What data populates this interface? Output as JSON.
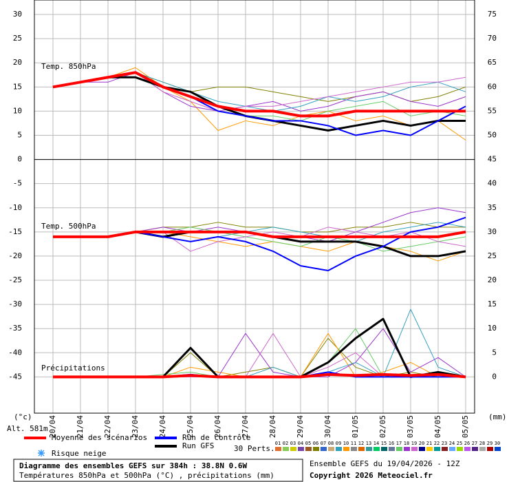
{
  "chart_data": {
    "type": "line",
    "categories": [
      "20/04",
      "21/04",
      "22/04",
      "23/04",
      "24/04",
      "25/04",
      "26/04",
      "27/04",
      "28/04",
      "29/04",
      "30/04",
      "01/05",
      "02/05",
      "03/05",
      "04/05",
      "05/05"
    ],
    "ylim": [
      -52.5,
      33
    ],
    "yticks": [
      30,
      25,
      20,
      15,
      10,
      5,
      0,
      -5,
      -10,
      -15,
      -20,
      -25,
      -30,
      -35,
      -40,
      -45
    ],
    "y2lim": [
      -7.5,
      78
    ],
    "y2ticks": [
      75,
      70,
      65,
      60,
      55,
      50,
      45,
      40,
      35,
      30,
      25,
      20,
      15,
      10,
      5,
      0
    ],
    "ylabel": "(°c)",
    "y2label": "(mm)",
    "grid": true,
    "annotations": [
      "Temp. 850hPa",
      "Temp. 500hPa",
      "Précipitations"
    ],
    "series": [
      {
        "color": "#808000",
        "values": [
          15,
          16,
          17,
          18,
          16,
          14,
          15,
          15,
          14,
          13,
          12,
          13,
          14,
          12,
          13,
          15
        ]
      },
      {
        "color": "#ff9900",
        "values": [
          15,
          16,
          17,
          19,
          15,
          12,
          6,
          8,
          7,
          9,
          10,
          8,
          9,
          7,
          8,
          4
        ]
      },
      {
        "color": "#9933cc",
        "values": [
          15,
          16,
          16,
          18,
          14,
          11,
          10,
          11,
          12,
          10,
          11,
          13,
          14,
          12,
          11,
          13
        ]
      },
      {
        "color": "#33a0c0",
        "values": [
          15,
          16,
          17,
          18,
          16,
          14,
          12,
          11,
          10,
          11,
          13,
          12,
          13,
          15,
          16,
          14
        ]
      },
      {
        "color": "#66cc66",
        "values": [
          15,
          16,
          17,
          18,
          15,
          13,
          11,
          9,
          9,
          8,
          10,
          11,
          12,
          9,
          10,
          9
        ]
      },
      {
        "color": "#cc66cc",
        "values": [
          15,
          16,
          17,
          18,
          14,
          12,
          10,
          11,
          11,
          12,
          13,
          14,
          15,
          16,
          16,
          17
        ]
      },
      {
        "color": "#808000",
        "values": [
          -16,
          -16,
          -16,
          -15,
          -14,
          -14,
          -13,
          -14,
          -14,
          -15,
          -15,
          -14,
          -14,
          -13,
          -14,
          -14
        ]
      },
      {
        "color": "#ff9900",
        "values": [
          -16,
          -16,
          -16,
          -15,
          -15,
          -16,
          -17,
          -18,
          -17,
          -18,
          -19,
          -17,
          -18,
          -19,
          -21,
          -19
        ]
      },
      {
        "color": "#9933cc",
        "values": [
          -16,
          -16,
          -16,
          -15,
          -14,
          -15,
          -14,
          -15,
          -16,
          -16,
          -17,
          -15,
          -13,
          -11,
          -10,
          -11
        ]
      },
      {
        "color": "#33a0c0",
        "values": [
          -16,
          -16,
          -16,
          -15,
          -16,
          -17,
          -16,
          -15,
          -14,
          -15,
          -16,
          -17,
          -15,
          -14,
          -13,
          -14
        ]
      },
      {
        "color": "#66cc66",
        "values": [
          -16,
          -16,
          -16,
          -15,
          -15,
          -14,
          -15,
          -16,
          -17,
          -18,
          -16,
          -17,
          -19,
          -18,
          -17,
          -16
        ]
      },
      {
        "color": "#cc66cc",
        "values": [
          -16,
          -16,
          -16,
          -15,
          -15,
          -19,
          -17,
          -16,
          -15,
          -16,
          -14,
          -15,
          -16,
          -15,
          -17,
          -18
        ]
      },
      {
        "color": "#808000",
        "axis": "y2",
        "values": [
          0,
          0,
          0,
          0,
          0,
          5,
          0,
          1,
          2,
          0,
          8,
          2,
          0,
          1,
          0,
          0
        ]
      },
      {
        "color": "#ff9900",
        "axis": "y2",
        "values": [
          0,
          0,
          0,
          0,
          0,
          2,
          1,
          0,
          0,
          0,
          9,
          0,
          1,
          3,
          0,
          0
        ]
      },
      {
        "color": "#9933cc",
        "axis": "y2",
        "values": [
          0,
          0,
          0,
          0,
          0,
          0,
          0,
          9,
          1,
          0,
          0,
          3,
          10,
          1,
          4,
          0
        ]
      },
      {
        "color": "#33a0c0",
        "axis": "y2",
        "values": [
          0,
          0,
          0,
          0,
          0,
          0,
          0,
          0,
          2,
          0,
          1,
          3,
          0,
          14,
          2,
          0
        ]
      },
      {
        "color": "#66cc66",
        "axis": "y2",
        "values": [
          0,
          0,
          0,
          0,
          0.5,
          1,
          0,
          0,
          0,
          0,
          3,
          10,
          0,
          0,
          1,
          0
        ]
      },
      {
        "color": "#cc66cc",
        "axis": "y2",
        "values": [
          0,
          0,
          0,
          0,
          0,
          0,
          0,
          0,
          9,
          0,
          2,
          5,
          0,
          0,
          0,
          0
        ]
      },
      {
        "color": "#000000",
        "width": 3,
        "values": [
          15,
          16,
          17,
          17,
          15,
          14,
          11,
          9,
          8,
          7,
          6,
          7,
          8,
          7,
          8,
          8
        ]
      },
      {
        "color": "#000000",
        "width": 3,
        "values": [
          -16,
          -16,
          -16,
          -15,
          -16,
          -15,
          -15,
          -15,
          -16,
          -17,
          -17,
          -17,
          -18,
          -20,
          -20,
          -19
        ]
      },
      {
        "color": "#000000",
        "width": 3,
        "axis": "y2",
        "values": [
          0,
          0,
          0,
          0,
          0,
          6,
          0,
          0,
          0,
          0,
          3,
          8,
          12,
          0,
          1,
          0
        ]
      },
      {
        "color": "#0000ff",
        "width": 2,
        "values": [
          15,
          16,
          17,
          18,
          15,
          13,
          10,
          9,
          8,
          8,
          7,
          5,
          6,
          5,
          8,
          11
        ]
      },
      {
        "color": "#0000ff",
        "width": 2,
        "values": [
          -16,
          -16,
          -16,
          -15,
          -16,
          -17,
          -16,
          -17,
          -19,
          -22,
          -23,
          -20,
          -18,
          -15,
          -14,
          -12
        ]
      },
      {
        "color": "#0000ff",
        "width": 2,
        "axis": "y2",
        "values": [
          0,
          0,
          0,
          0,
          0,
          0.5,
          0,
          0,
          0,
          0,
          1,
          0,
          0,
          0,
          0,
          0
        ]
      },
      {
        "color": "#ff0000",
        "width": 4,
        "values": [
          15,
          16,
          17,
          18,
          15,
          13,
          11,
          10,
          10,
          9,
          9,
          10,
          10,
          10,
          10,
          10
        ]
      },
      {
        "color": "#ff0000",
        "width": 4,
        "values": [
          -16,
          -16,
          -16,
          -15,
          -15,
          -15,
          -15,
          -15,
          -16,
          -16,
          -16,
          -16,
          -16,
          -16,
          -16,
          -15
        ]
      },
      {
        "color": "#ff0000",
        "width": 4,
        "axis": "y2",
        "values": [
          0,
          0,
          0,
          0,
          0,
          0.3,
          0,
          0,
          0,
          0,
          0.5,
          0.3,
          0.5,
          0.3,
          0.5,
          0
        ]
      }
    ]
  },
  "legend": {
    "altitude": "Alt. 581m",
    "main": [
      {
        "name": "Moyenne des scénarios",
        "color": "#ff0000"
      },
      {
        "name": "Run de contrôle",
        "color": "#0000ff"
      },
      {
        "name": "Run GFS",
        "color": "#000000"
      }
    ],
    "snow": "Risque neige",
    "perts_label": "30 Perts.",
    "perts": [
      {
        "label": "01",
        "color": "#e07030"
      },
      {
        "label": "02",
        "color": "#88cc55"
      },
      {
        "label": "03",
        "color": "#cccc00"
      },
      {
        "label": "04",
        "color": "#7744aa"
      },
      {
        "label": "05",
        "color": "#995522"
      },
      {
        "label": "06",
        "color": "#808000"
      },
      {
        "label": "07",
        "color": "#3366cc"
      },
      {
        "label": "08",
        "color": "#ccaa77"
      },
      {
        "label": "09",
        "color": "#33a0c0"
      },
      {
        "label": "10",
        "color": "#ff9900"
      },
      {
        "label": "11",
        "color": "#888888"
      },
      {
        "label": "12",
        "color": "#dd6600"
      },
      {
        "label": "13",
        "color": "#339999"
      },
      {
        "label": "14",
        "color": "#00cc66"
      },
      {
        "label": "15",
        "color": "#006666"
      },
      {
        "label": "16",
        "color": "#667799"
      },
      {
        "label": "17",
        "color": "#66cc66"
      },
      {
        "label": "18",
        "color": "#9933cc"
      },
      {
        "label": "19",
        "color": "#cc66cc"
      },
      {
        "label": "20",
        "color": "#000088"
      },
      {
        "label": "21",
        "color": "#ffcc00"
      },
      {
        "label": "22",
        "color": "#009999"
      },
      {
        "label": "23",
        "color": "#882222"
      },
      {
        "label": "24",
        "color": "#66aaff"
      },
      {
        "label": "25",
        "color": "#99dd00"
      },
      {
        "label": "26",
        "color": "#bb55ee"
      },
      {
        "label": "27",
        "color": "#552288"
      },
      {
        "label": "28",
        "color": "#aaaaaa"
      },
      {
        "label": "29",
        "color": "#aa0000"
      },
      {
        "label": "30",
        "color": "#0044cc"
      }
    ]
  },
  "footer": {
    "title": "Diagramme des ensembles GEFS sur 384h : 38.8N 0.6W",
    "subtitle": "Températures 850hPa et 500hPa (°C) , précipitations (mm)",
    "run": "Ensemble GEFS du 19/04/2026 - 12Z",
    "copyright": "Copyright 2026 Meteociel.fr"
  }
}
